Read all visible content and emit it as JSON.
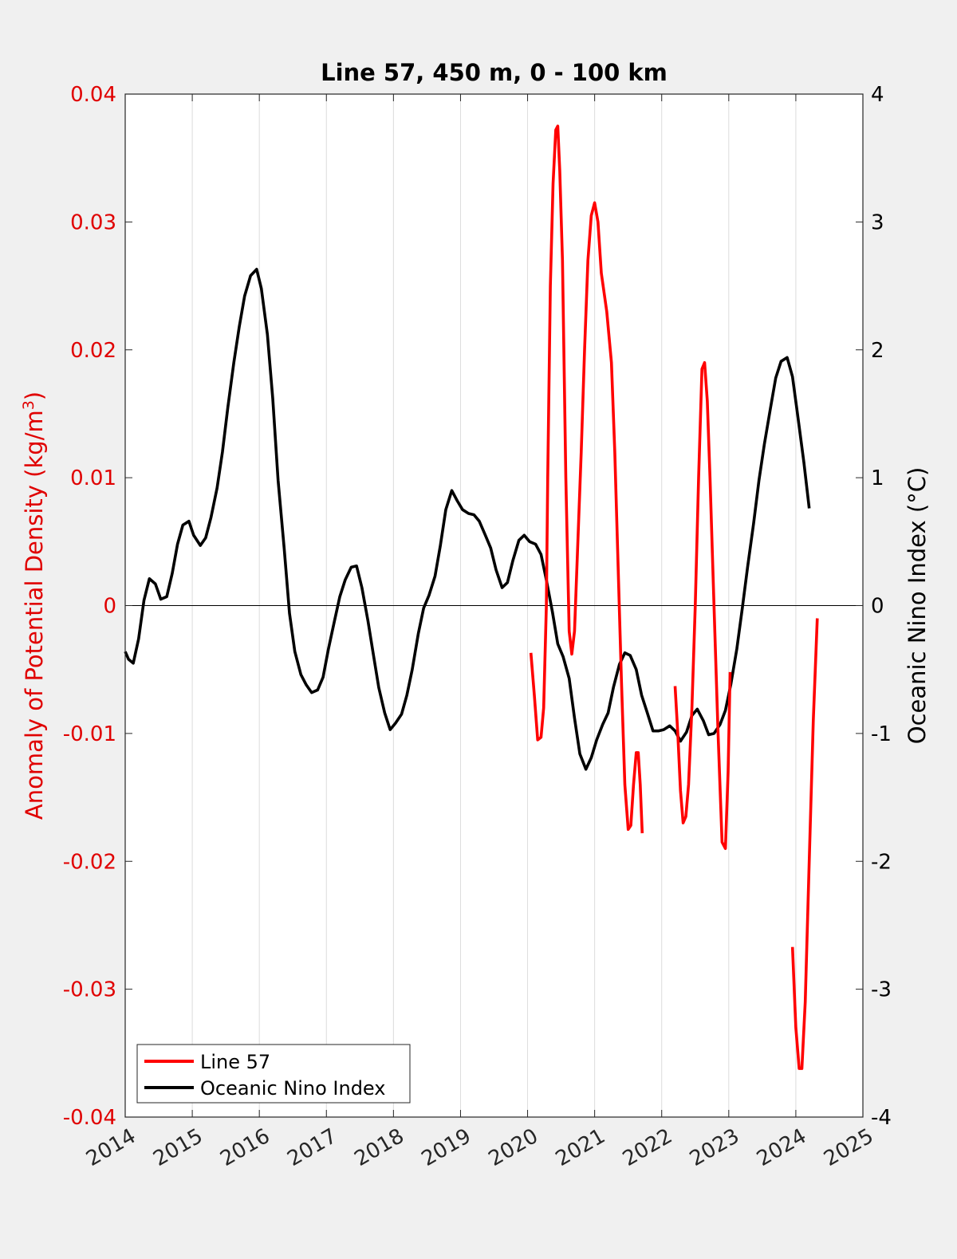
{
  "chart_data": {
    "type": "line",
    "title": "Line 57, 450 m, 0 - 100 km",
    "ylabel_left": "Anomaly of Potential Density (kg/m",
    "ylabel_left_superscript": "3",
    "ylabel_left_close": ")",
    "ylabel_right": "Oceanic Nino Index (°C)",
    "xlim": [
      2014,
      2025
    ],
    "ylim_left": [
      -0.04,
      0.04
    ],
    "ylim_right": [
      -4,
      4
    ],
    "x_ticks": [
      "2014",
      "2015",
      "2016",
      "2017",
      "2018",
      "2019",
      "2020",
      "2021",
      "2022",
      "2023",
      "2024",
      "2025"
    ],
    "y_left_ticks": [
      "-0.04",
      "-0.03",
      "-0.02",
      "-0.01",
      "0",
      "0.01",
      "0.02",
      "0.03",
      "0.04"
    ],
    "y_right_ticks": [
      "-4",
      "-3",
      "-2",
      "-1",
      "0",
      "1",
      "2",
      "3",
      "4"
    ],
    "grid": "vertical",
    "zero_line": true,
    "legend_position": "bottom-left",
    "colors": {
      "line57": "#ff0000",
      "oni": "#000000",
      "left_axis": "#e00000",
      "right_axis": "#000000"
    },
    "series": [
      {
        "name": "Line 57",
        "axis": "left",
        "segments": [
          [
            [
              2020.05,
              -0.0037
            ],
            [
              2020.1,
              -0.007
            ],
            [
              2020.15,
              -0.0105
            ],
            [
              2020.2,
              -0.0103
            ],
            [
              2020.24,
              -0.008
            ],
            [
              2020.28,
              0.0
            ],
            [
              2020.3,
              0.01
            ],
            [
              2020.34,
              0.025
            ],
            [
              2020.38,
              0.033
            ],
            [
              2020.42,
              0.0372
            ],
            [
              2020.45,
              0.0375
            ],
            [
              2020.48,
              0.034
            ],
            [
              2020.52,
              0.027
            ],
            [
              2020.57,
              0.01
            ],
            [
              2020.62,
              -0.002
            ],
            [
              2020.66,
              -0.0038
            ],
            [
              2020.7,
              -0.002
            ],
            [
              2020.75,
              0.005
            ],
            [
              2020.8,
              0.012
            ],
            [
              2020.85,
              0.02
            ],
            [
              2020.9,
              0.027
            ],
            [
              2020.95,
              0.0305
            ],
            [
              2021.0,
              0.0315
            ],
            [
              2021.05,
              0.03
            ],
            [
              2021.1,
              0.026
            ],
            [
              2021.18,
              0.023
            ],
            [
              2021.25,
              0.019
            ],
            [
              2021.3,
              0.012
            ],
            [
              2021.35,
              0.003
            ],
            [
              2021.4,
              -0.006
            ],
            [
              2021.45,
              -0.014
            ],
            [
              2021.5,
              -0.0175
            ],
            [
              2021.54,
              -0.0172
            ],
            [
              2021.58,
              -0.014
            ],
            [
              2021.62,
              -0.0115
            ],
            [
              2021.65,
              -0.0115
            ],
            [
              2021.68,
              -0.014
            ],
            [
              2021.71,
              -0.0178
            ]
          ],
          [
            [
              2022.2,
              -0.0063
            ],
            [
              2022.24,
              -0.01
            ],
            [
              2022.28,
              -0.0145
            ],
            [
              2022.32,
              -0.017
            ],
            [
              2022.36,
              -0.0165
            ],
            [
              2022.4,
              -0.014
            ],
            [
              2022.45,
              -0.008
            ],
            [
              2022.5,
              0.0
            ],
            [
              2022.55,
              0.01
            ],
            [
              2022.6,
              0.0185
            ],
            [
              2022.64,
              0.019
            ],
            [
              2022.68,
              0.016
            ],
            [
              2022.72,
              0.01
            ],
            [
              2022.78,
              0.0
            ],
            [
              2022.84,
              -0.01
            ],
            [
              2022.9,
              -0.0185
            ],
            [
              2022.95,
              -0.019
            ],
            [
              2022.99,
              -0.013
            ],
            [
              2023.02,
              -0.0052
            ]
          ],
          [
            [
              2023.95,
              -0.0267
            ],
            [
              2024.0,
              -0.033
            ],
            [
              2024.05,
              -0.0362
            ],
            [
              2024.09,
              -0.0362
            ],
            [
              2024.14,
              -0.031
            ],
            [
              2024.2,
              -0.02
            ],
            [
              2024.26,
              -0.009
            ],
            [
              2024.32,
              -0.001
            ]
          ]
        ]
      },
      {
        "name": "Oceanic Nino Index",
        "axis": "right",
        "segments": [
          [
            [
              2014.0,
              -0.36
            ],
            [
              2014.05,
              -0.42
            ],
            [
              2014.12,
              -0.45
            ],
            [
              2014.2,
              -0.26
            ],
            [
              2014.28,
              0.04
            ],
            [
              2014.36,
              0.21
            ],
            [
              2014.45,
              0.17
            ],
            [
              2014.53,
              0.05
            ],
            [
              2014.62,
              0.07
            ],
            [
              2014.7,
              0.25
            ],
            [
              2014.78,
              0.48
            ],
            [
              2014.86,
              0.63
            ],
            [
              2014.95,
              0.66
            ],
            [
              2015.02,
              0.55
            ],
            [
              2015.12,
              0.47
            ],
            [
              2015.2,
              0.53
            ],
            [
              2015.28,
              0.69
            ],
            [
              2015.37,
              0.92
            ],
            [
              2015.45,
              1.2
            ],
            [
              2015.53,
              1.55
            ],
            [
              2015.62,
              1.9
            ],
            [
              2015.7,
              2.18
            ],
            [
              2015.78,
              2.42
            ],
            [
              2015.87,
              2.58
            ],
            [
              2015.96,
              2.63
            ],
            [
              2016.03,
              2.48
            ],
            [
              2016.12,
              2.12
            ],
            [
              2016.2,
              1.62
            ],
            [
              2016.28,
              0.98
            ],
            [
              2016.37,
              0.45
            ],
            [
              2016.45,
              -0.06
            ],
            [
              2016.53,
              -0.36
            ],
            [
              2016.62,
              -0.54
            ],
            [
              2016.7,
              -0.62
            ],
            [
              2016.78,
              -0.68
            ],
            [
              2016.87,
              -0.66
            ],
            [
              2016.95,
              -0.56
            ],
            [
              2017.03,
              -0.34
            ],
            [
              2017.12,
              -0.12
            ],
            [
              2017.2,
              0.07
            ],
            [
              2017.28,
              0.2
            ],
            [
              2017.37,
              0.3
            ],
            [
              2017.45,
              0.31
            ],
            [
              2017.53,
              0.14
            ],
            [
              2017.62,
              -0.12
            ],
            [
              2017.7,
              -0.38
            ],
            [
              2017.78,
              -0.64
            ],
            [
              2017.87,
              -0.84
            ],
            [
              2017.95,
              -0.97
            ],
            [
              2018.03,
              -0.92
            ],
            [
              2018.12,
              -0.85
            ],
            [
              2018.2,
              -0.7
            ],
            [
              2018.28,
              -0.5
            ],
            [
              2018.37,
              -0.22
            ],
            [
              2018.45,
              -0.02
            ],
            [
              2018.53,
              0.08
            ],
            [
              2018.62,
              0.23
            ],
            [
              2018.7,
              0.47
            ],
            [
              2018.78,
              0.75
            ],
            [
              2018.87,
              0.9
            ],
            [
              2018.95,
              0.82
            ],
            [
              2019.03,
              0.75
            ],
            [
              2019.12,
              0.72
            ],
            [
              2019.2,
              0.71
            ],
            [
              2019.28,
              0.66
            ],
            [
              2019.37,
              0.55
            ],
            [
              2019.45,
              0.45
            ],
            [
              2019.53,
              0.28
            ],
            [
              2019.62,
              0.14
            ],
            [
              2019.7,
              0.18
            ],
            [
              2019.78,
              0.35
            ],
            [
              2019.87,
              0.51
            ],
            [
              2019.95,
              0.55
            ],
            [
              2020.03,
              0.5
            ],
            [
              2020.12,
              0.48
            ],
            [
              2020.2,
              0.4
            ],
            [
              2020.28,
              0.2
            ],
            [
              2020.37,
              -0.05
            ],
            [
              2020.45,
              -0.3
            ],
            [
              2020.53,
              -0.4
            ],
            [
              2020.62,
              -0.57
            ],
            [
              2020.7,
              -0.88
            ],
            [
              2020.78,
              -1.16
            ],
            [
              2020.87,
              -1.28
            ],
            [
              2020.95,
              -1.19
            ],
            [
              2021.03,
              -1.05
            ],
            [
              2021.12,
              -0.93
            ],
            [
              2021.2,
              -0.84
            ],
            [
              2021.28,
              -0.64
            ],
            [
              2021.37,
              -0.46
            ],
            [
              2021.45,
              -0.37
            ],
            [
              2021.53,
              -0.39
            ],
            [
              2021.62,
              -0.5
            ],
            [
              2021.7,
              -0.7
            ],
            [
              2021.78,
              -0.83
            ],
            [
              2021.87,
              -0.98
            ],
            [
              2021.95,
              -0.98
            ],
            [
              2022.03,
              -0.97
            ],
            [
              2022.12,
              -0.94
            ],
            [
              2022.2,
              -0.98
            ],
            [
              2022.28,
              -1.06
            ],
            [
              2022.37,
              -0.99
            ],
            [
              2022.45,
              -0.86
            ],
            [
              2022.53,
              -0.81
            ],
            [
              2022.62,
              -0.9
            ],
            [
              2022.7,
              -1.01
            ],
            [
              2022.78,
              -1.0
            ],
            [
              2022.87,
              -0.93
            ],
            [
              2022.95,
              -0.82
            ],
            [
              2023.03,
              -0.62
            ],
            [
              2023.12,
              -0.34
            ],
            [
              2023.2,
              -0.03
            ],
            [
              2023.28,
              0.3
            ],
            [
              2023.37,
              0.64
            ],
            [
              2023.45,
              0.98
            ],
            [
              2023.53,
              1.26
            ],
            [
              2023.62,
              1.54
            ],
            [
              2023.7,
              1.78
            ],
            [
              2023.78,
              1.91
            ],
            [
              2023.87,
              1.94
            ],
            [
              2023.95,
              1.79
            ],
            [
              2024.03,
              1.48
            ],
            [
              2024.12,
              1.12
            ],
            [
              2024.2,
              0.76
            ]
          ]
        ]
      }
    ]
  }
}
